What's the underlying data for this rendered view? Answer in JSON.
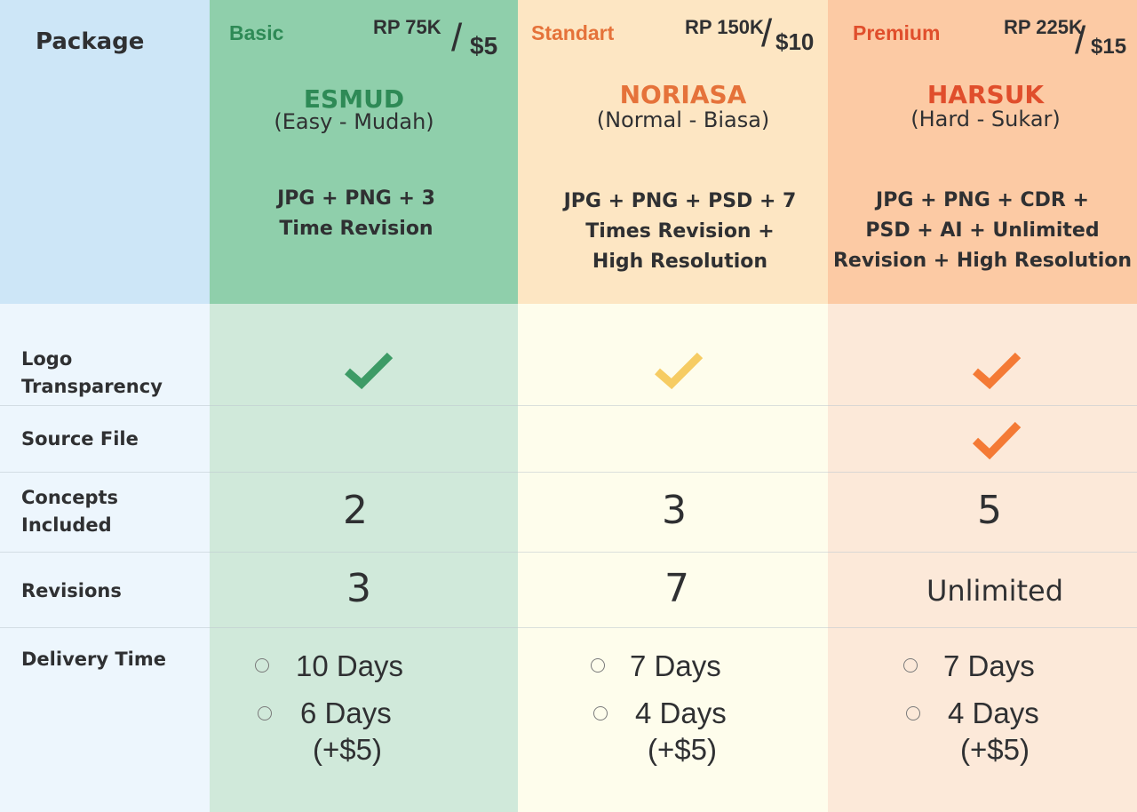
{
  "header": {
    "package_label": "Package"
  },
  "colors": {
    "basic": "#2e8a56",
    "standard": "#e5723a",
    "premium": "#e04e2c",
    "check_basic": "#3d9b66",
    "check_standard": "#f6cc63",
    "check_premium": "#f47a35"
  },
  "plans": [
    {
      "tier": "Basic",
      "price_local": "RP 75K",
      "price_usd": "$5",
      "name": "ESMUD",
      "subtitle": "(Easy - Mudah)",
      "description_lines": [
        "JPG + PNG + 3",
        "Time Revision"
      ],
      "logo_transparency": true,
      "source_file": false,
      "concepts": "2",
      "revisions": "3",
      "delivery": [
        {
          "label": "10 Days",
          "extra": ""
        },
        {
          "label": "6 Days",
          "extra": "(+$5)"
        }
      ]
    },
    {
      "tier": "Standart",
      "price_local": "RP 150K",
      "price_usd": "$10",
      "name": "NORIASA",
      "subtitle": "(Normal - Biasa)",
      "description_lines": [
        "JPG + PNG + PSD + 7",
        "Times Revision +",
        "High Resolution"
      ],
      "logo_transparency": true,
      "source_file": false,
      "concepts": "3",
      "revisions": "7",
      "delivery": [
        {
          "label": "7 Days",
          "extra": ""
        },
        {
          "label": "4 Days",
          "extra": "(+$5)"
        }
      ]
    },
    {
      "tier": "Premium",
      "price_local": "RP 225K",
      "price_usd": "$15",
      "name": "HARSUK",
      "subtitle": "(Hard - Sukar)",
      "description_lines": [
        "JPG + PNG + CDR +",
        "PSD + AI + Unlimited",
        "Revision + High Resolution"
      ],
      "logo_transparency": true,
      "source_file": true,
      "concepts": "5",
      "revisions": "Unlimited",
      "delivery": [
        {
          "label": "7 Days",
          "extra": ""
        },
        {
          "label": "4 Days",
          "extra": "(+$5)"
        }
      ]
    }
  ],
  "rows": {
    "logo_transparency": [
      "Logo",
      "Transparency"
    ],
    "source_file": "Source File",
    "concepts": [
      "Concepts",
      "Included"
    ],
    "revisions": "Revisions",
    "delivery_time": "Delivery Time"
  }
}
